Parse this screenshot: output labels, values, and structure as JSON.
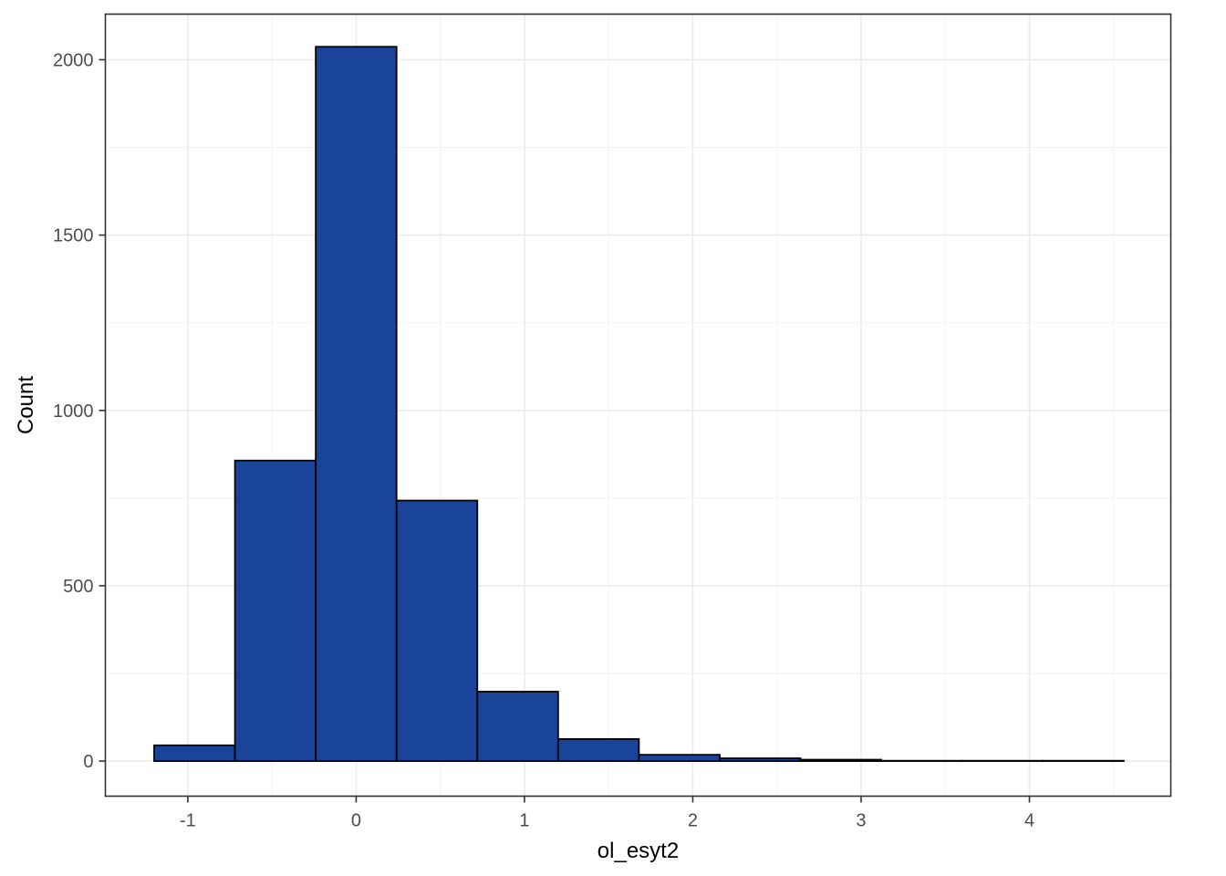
{
  "chart_data": {
    "type": "bar",
    "subtype": "histogram",
    "title": "",
    "xlabel": "ol_esyt2",
    "ylabel": "Count",
    "xlim": [
      -1.49,
      4.84
    ],
    "ylim": [
      -100,
      2130
    ],
    "x_ticks": [
      -1,
      0,
      1,
      2,
      3,
      4
    ],
    "x_tick_labels": [
      "-1",
      "0",
      "1",
      "2",
      "3",
      "4"
    ],
    "y_ticks": [
      0,
      500,
      1000,
      1500,
      2000
    ],
    "y_tick_labels": [
      "0",
      "500",
      "1000",
      "1500",
      "2000"
    ],
    "bins": [
      {
        "x0": -1.2,
        "x1": -0.72,
        "count": 45
      },
      {
        "x0": -0.72,
        "x1": -0.24,
        "count": 857
      },
      {
        "x0": -0.24,
        "x1": 0.24,
        "count": 2037
      },
      {
        "x0": 0.24,
        "x1": 0.72,
        "count": 743
      },
      {
        "x0": 0.72,
        "x1": 1.2,
        "count": 198
      },
      {
        "x0": 1.2,
        "x1": 1.68,
        "count": 63
      },
      {
        "x0": 1.68,
        "x1": 2.16,
        "count": 18
      },
      {
        "x0": 2.16,
        "x1": 2.64,
        "count": 8
      },
      {
        "x0": 2.64,
        "x1": 3.12,
        "count": 4
      },
      {
        "x0": 3.12,
        "x1": 3.6,
        "count": 1
      },
      {
        "x0": 3.6,
        "x1": 4.08,
        "count": 1
      },
      {
        "x0": 4.08,
        "x1": 4.56,
        "count": 1
      }
    ],
    "bar_fill": "#1a449a",
    "bar_stroke": "#000000",
    "grid": true,
    "legend": "none"
  }
}
